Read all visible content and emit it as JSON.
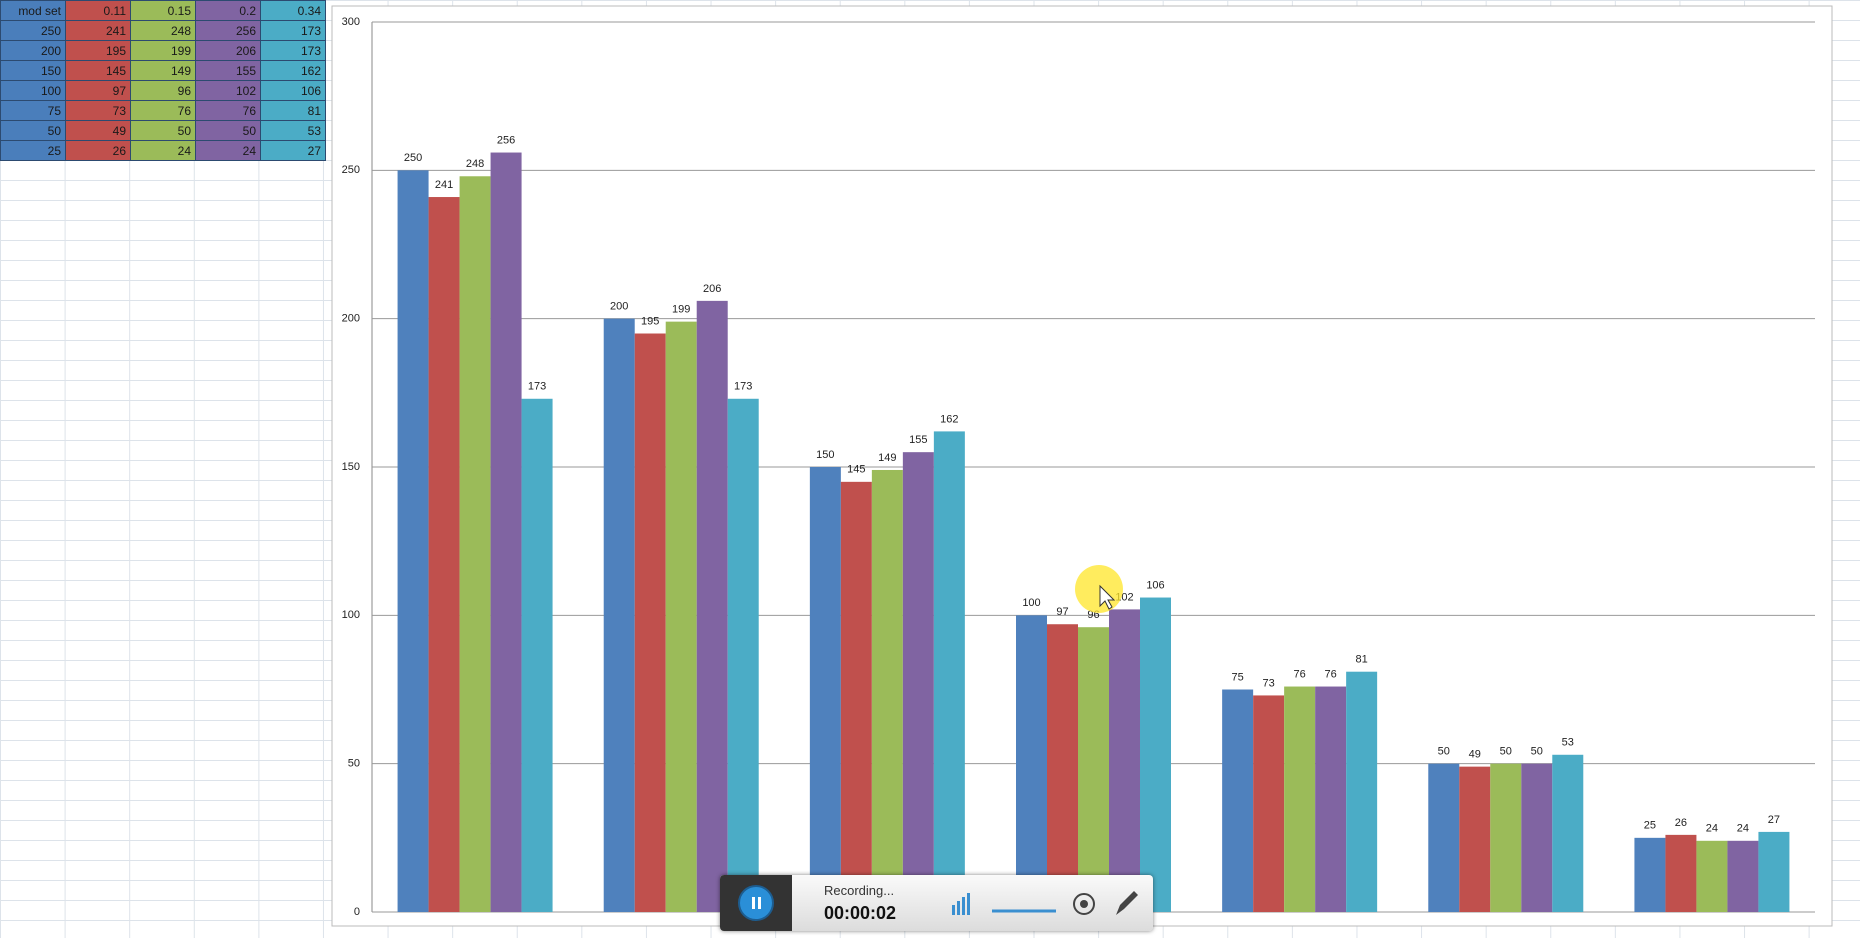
{
  "spreadsheet": {
    "header": [
      "mod set",
      "0.11",
      "0.15",
      "0.2",
      "0.34"
    ],
    "rows": [
      [
        "250",
        "241",
        "248",
        "256",
        "173"
      ],
      [
        "200",
        "195",
        "199",
        "206",
        "173"
      ],
      [
        "150",
        "145",
        "149",
        "155",
        "162"
      ],
      [
        "100",
        "97",
        "96",
        "102",
        "106"
      ],
      [
        "75",
        "73",
        "76",
        "76",
        "81"
      ],
      [
        "50",
        "49",
        "50",
        "50",
        "53"
      ],
      [
        "25",
        "26",
        "24",
        "24",
        "27"
      ]
    ]
  },
  "chart_data": {
    "type": "bar",
    "categories": [
      null,
      null,
      null,
      null,
      null,
      null,
      null
    ],
    "series": [
      {
        "color": "#4f81bd",
        "values": [
          250,
          200,
          150,
          100,
          75,
          50,
          25
        ]
      },
      {
        "color": "#c0504d",
        "values": [
          241,
          195,
          145,
          97,
          73,
          49,
          26
        ]
      },
      {
        "color": "#9bbb59",
        "values": [
          248,
          199,
          149,
          96,
          76,
          50,
          24
        ]
      },
      {
        "color": "#8064a2",
        "values": [
          256,
          206,
          155,
          102,
          76,
          50,
          24
        ]
      },
      {
        "color": "#4bacc6",
        "values": [
          173,
          173,
          162,
          106,
          81,
          53,
          27
        ]
      }
    ],
    "ylim": [
      0,
      300
    ],
    "yticks": [
      0,
      50,
      100,
      150,
      200,
      250,
      300
    ],
    "grid": true,
    "data_labels": true
  },
  "recorder": {
    "status": "Recording...",
    "time": "00:00:02"
  }
}
